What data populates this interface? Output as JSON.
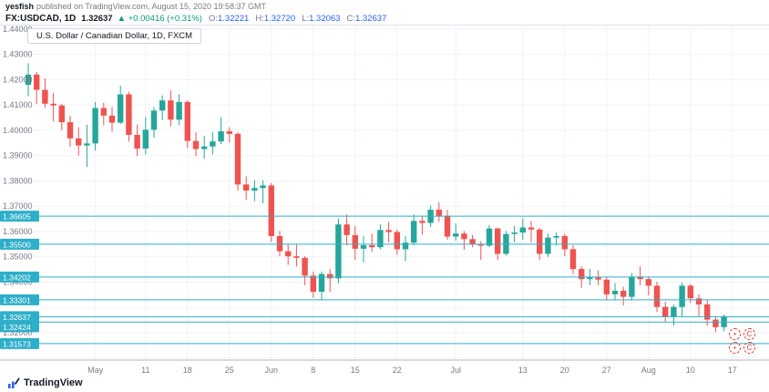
{
  "header": {
    "publisher": "yesfish",
    "publish_info": "published on TradingView.com, August 15, 2020 19:58:37 GMT",
    "symbol": "FX:USDCAD, 1D",
    "last_price": "1.32637",
    "change": "▲ +0.00416 (+0.31%)",
    "ohlc": [
      {
        "label": "O:",
        "value": "1.32221"
      },
      {
        "label": "H:",
        "value": "1.32720"
      },
      {
        "label": "L:",
        "value": "1.32063"
      },
      {
        "label": "C:",
        "value": "1.32637"
      }
    ]
  },
  "legend": {
    "title": "U.S. Dollar / Canadian Dollar, 1D, FXCM"
  },
  "footer": {
    "logo_text": "TradingView"
  },
  "watermark": {
    "glyphs": [
      "•",
      "C",
      "•",
      "C"
    ]
  },
  "colors": {
    "up": "#26a69a",
    "down": "#ef5350",
    "line": "#2eafc9",
    "label_bg": "#2eafc9",
    "grid": "#f0f3fa",
    "axis_text": "#787b86",
    "axis_line": "#b2b5be",
    "change_green": "#089981",
    "ohlc_value": "#2962ff"
  },
  "chart_data": {
    "type": "candlestick",
    "title": "U.S. Dollar / Canadian Dollar, 1D, FXCM",
    "symbol": "FX:USDCAD",
    "interval": "1D",
    "legend_position": "top-left",
    "grid": true,
    "y_axis": {
      "side": "left",
      "range": [
        1.3092,
        1.4414
      ],
      "ticks": [
        1.44,
        1.43,
        1.42,
        1.41,
        1.4,
        1.39,
        1.38,
        1.37,
        1.36,
        1.35,
        1.34,
        1.32
      ],
      "price_lines": [
        1.36605,
        1.355,
        1.34202,
        1.33301,
        1.32637,
        1.32424,
        1.31573
      ]
    },
    "x_axis": {
      "ticks": [
        {
          "label": "May",
          "index": 8
        },
        {
          "label": "11",
          "index": 14
        },
        {
          "label": "18",
          "index": 19
        },
        {
          "label": "25",
          "index": 24
        },
        {
          "label": "Jun",
          "index": 29
        },
        {
          "label": "8",
          "index": 34
        },
        {
          "label": "15",
          "index": 39
        },
        {
          "label": "22",
          "index": 44
        },
        {
          "label": "Jul",
          "index": 51
        },
        {
          "label": "13",
          "index": 59
        },
        {
          "label": "20",
          "index": 64
        },
        {
          "label": "27",
          "index": 69
        },
        {
          "label": "Aug",
          "index": 74
        },
        {
          "label": "10",
          "index": 79
        },
        {
          "label": "17",
          "index": 84
        }
      ]
    },
    "candles": [
      [
        1.418,
        1.4265,
        1.4135,
        1.422
      ],
      [
        1.422,
        1.423,
        1.4105,
        1.416
      ],
      [
        1.416,
        1.4205,
        1.409,
        1.4105
      ],
      [
        1.4105,
        1.4148,
        1.4035,
        1.4098
      ],
      [
        1.4098,
        1.4105,
        1.4,
        1.4032
      ],
      [
        1.4032,
        1.4058,
        1.3935,
        1.3968
      ],
      [
        1.3968,
        1.4012,
        1.39,
        1.394
      ],
      [
        1.394,
        1.4022,
        1.3855,
        1.3948
      ],
      [
        1.3948,
        1.4112,
        1.392,
        1.4088
      ],
      [
        1.4088,
        1.4108,
        1.402,
        1.4058
      ],
      [
        1.4058,
        1.4092,
        1.3995,
        1.403
      ],
      [
        1.403,
        1.4176,
        1.4025,
        1.4142
      ],
      [
        1.4142,
        1.4152,
        1.3955,
        1.3982
      ],
      [
        1.3982,
        1.4022,
        1.3898,
        1.3928
      ],
      [
        1.3928,
        1.4052,
        1.3905,
        1.4002
      ],
      [
        1.4002,
        1.4092,
        1.397,
        1.4078
      ],
      [
        1.4078,
        1.4138,
        1.404,
        1.4118
      ],
      [
        1.4118,
        1.4158,
        1.4015,
        1.4042
      ],
      [
        1.4042,
        1.4142,
        1.402,
        1.4112
      ],
      [
        1.4112,
        1.4118,
        1.393,
        1.3958
      ],
      [
        1.3958,
        1.3992,
        1.3898,
        1.3926
      ],
      [
        1.3926,
        1.3978,
        1.3888,
        1.3936
      ],
      [
        1.3936,
        1.3992,
        1.3905,
        1.3956
      ],
      [
        1.3956,
        1.4052,
        1.3945,
        1.3996
      ],
      [
        1.3996,
        1.4012,
        1.3952,
        1.3986
      ],
      [
        1.3986,
        1.3992,
        1.3762,
        1.3786
      ],
      [
        1.3786,
        1.3818,
        1.3725,
        1.3762
      ],
      [
        1.3762,
        1.3802,
        1.372,
        1.3772
      ],
      [
        1.3772,
        1.3802,
        1.3712,
        1.3782
      ],
      [
        1.3782,
        1.3792,
        1.3558,
        1.3582
      ],
      [
        1.3582,
        1.3602,
        1.3502,
        1.3522
      ],
      [
        1.3522,
        1.3548,
        1.3468,
        1.3502
      ],
      [
        1.3502,
        1.3548,
        1.3462,
        1.3496
      ],
      [
        1.3496,
        1.3502,
        1.3388,
        1.3426
      ],
      [
        1.3426,
        1.3442,
        1.3338,
        1.3362
      ],
      [
        1.3362,
        1.3442,
        1.3328,
        1.3432
      ],
      [
        1.3432,
        1.3452,
        1.3362,
        1.3415
      ],
      [
        1.3415,
        1.3652,
        1.3395,
        1.3628
      ],
      [
        1.3628,
        1.3668,
        1.3545,
        1.3586
      ],
      [
        1.3586,
        1.3622,
        1.3488,
        1.3532
      ],
      [
        1.3532,
        1.3582,
        1.3478,
        1.3546
      ],
      [
        1.3546,
        1.3592,
        1.352,
        1.3538
      ],
      [
        1.3538,
        1.3628,
        1.353,
        1.3606
      ],
      [
        1.3606,
        1.3638,
        1.3558,
        1.3598
      ],
      [
        1.3598,
        1.3608,
        1.3508,
        1.353
      ],
      [
        1.353,
        1.3582,
        1.3484,
        1.3556
      ],
      [
        1.3556,
        1.3668,
        1.3546,
        1.3642
      ],
      [
        1.3642,
        1.3662,
        1.3588,
        1.3634
      ],
      [
        1.3634,
        1.3702,
        1.3618,
        1.3686
      ],
      [
        1.3686,
        1.3716,
        1.3638,
        1.3662
      ],
      [
        1.3662,
        1.3686,
        1.3568,
        1.358
      ],
      [
        1.358,
        1.3632,
        1.3564,
        1.3592
      ],
      [
        1.3592,
        1.3602,
        1.3528,
        1.357
      ],
      [
        1.357,
        1.3586,
        1.3538,
        1.355
      ],
      [
        1.355,
        1.3562,
        1.3488,
        1.3544
      ],
      [
        1.3544,
        1.3626,
        1.3538,
        1.3612
      ],
      [
        1.3612,
        1.3616,
        1.3488,
        1.3512
      ],
      [
        1.3512,
        1.3602,
        1.3505,
        1.359
      ],
      [
        1.359,
        1.3622,
        1.3558,
        1.3596
      ],
      [
        1.3596,
        1.3652,
        1.3568,
        1.3616
      ],
      [
        1.3616,
        1.3642,
        1.3558,
        1.3608
      ],
      [
        1.3608,
        1.3614,
        1.3488,
        1.3512
      ],
      [
        1.3512,
        1.3592,
        1.35,
        1.3576
      ],
      [
        1.3576,
        1.3596,
        1.3544,
        1.3582
      ],
      [
        1.3582,
        1.3592,
        1.3502,
        1.353
      ],
      [
        1.353,
        1.3546,
        1.3432,
        1.3452
      ],
      [
        1.3452,
        1.3462,
        1.3378,
        1.3412
      ],
      [
        1.3412,
        1.3452,
        1.3388,
        1.3418
      ],
      [
        1.3418,
        1.3446,
        1.3388,
        1.341
      ],
      [
        1.341,
        1.342,
        1.3328,
        1.3352
      ],
      [
        1.3352,
        1.3396,
        1.3328,
        1.3366
      ],
      [
        1.3366,
        1.3382,
        1.3308,
        1.3342
      ],
      [
        1.3342,
        1.3436,
        1.3328,
        1.3422
      ],
      [
        1.3422,
        1.3462,
        1.3388,
        1.3412
      ],
      [
        1.3412,
        1.3422,
        1.3348,
        1.3386
      ],
      [
        1.3386,
        1.3402,
        1.3282,
        1.3302
      ],
      [
        1.3302,
        1.3322,
        1.3242,
        1.3262
      ],
      [
        1.3262,
        1.3312,
        1.3228,
        1.3302
      ],
      [
        1.3302,
        1.3398,
        1.3262,
        1.3386
      ],
      [
        1.3386,
        1.3392,
        1.3318,
        1.3336
      ],
      [
        1.3336,
        1.3352,
        1.3262,
        1.3312
      ],
      [
        1.3312,
        1.3332,
        1.3228,
        1.3252
      ],
      [
        1.3252,
        1.3266,
        1.3202,
        1.3222
      ],
      [
        1.32221,
        1.3272,
        1.32063,
        1.32637
      ]
    ]
  }
}
